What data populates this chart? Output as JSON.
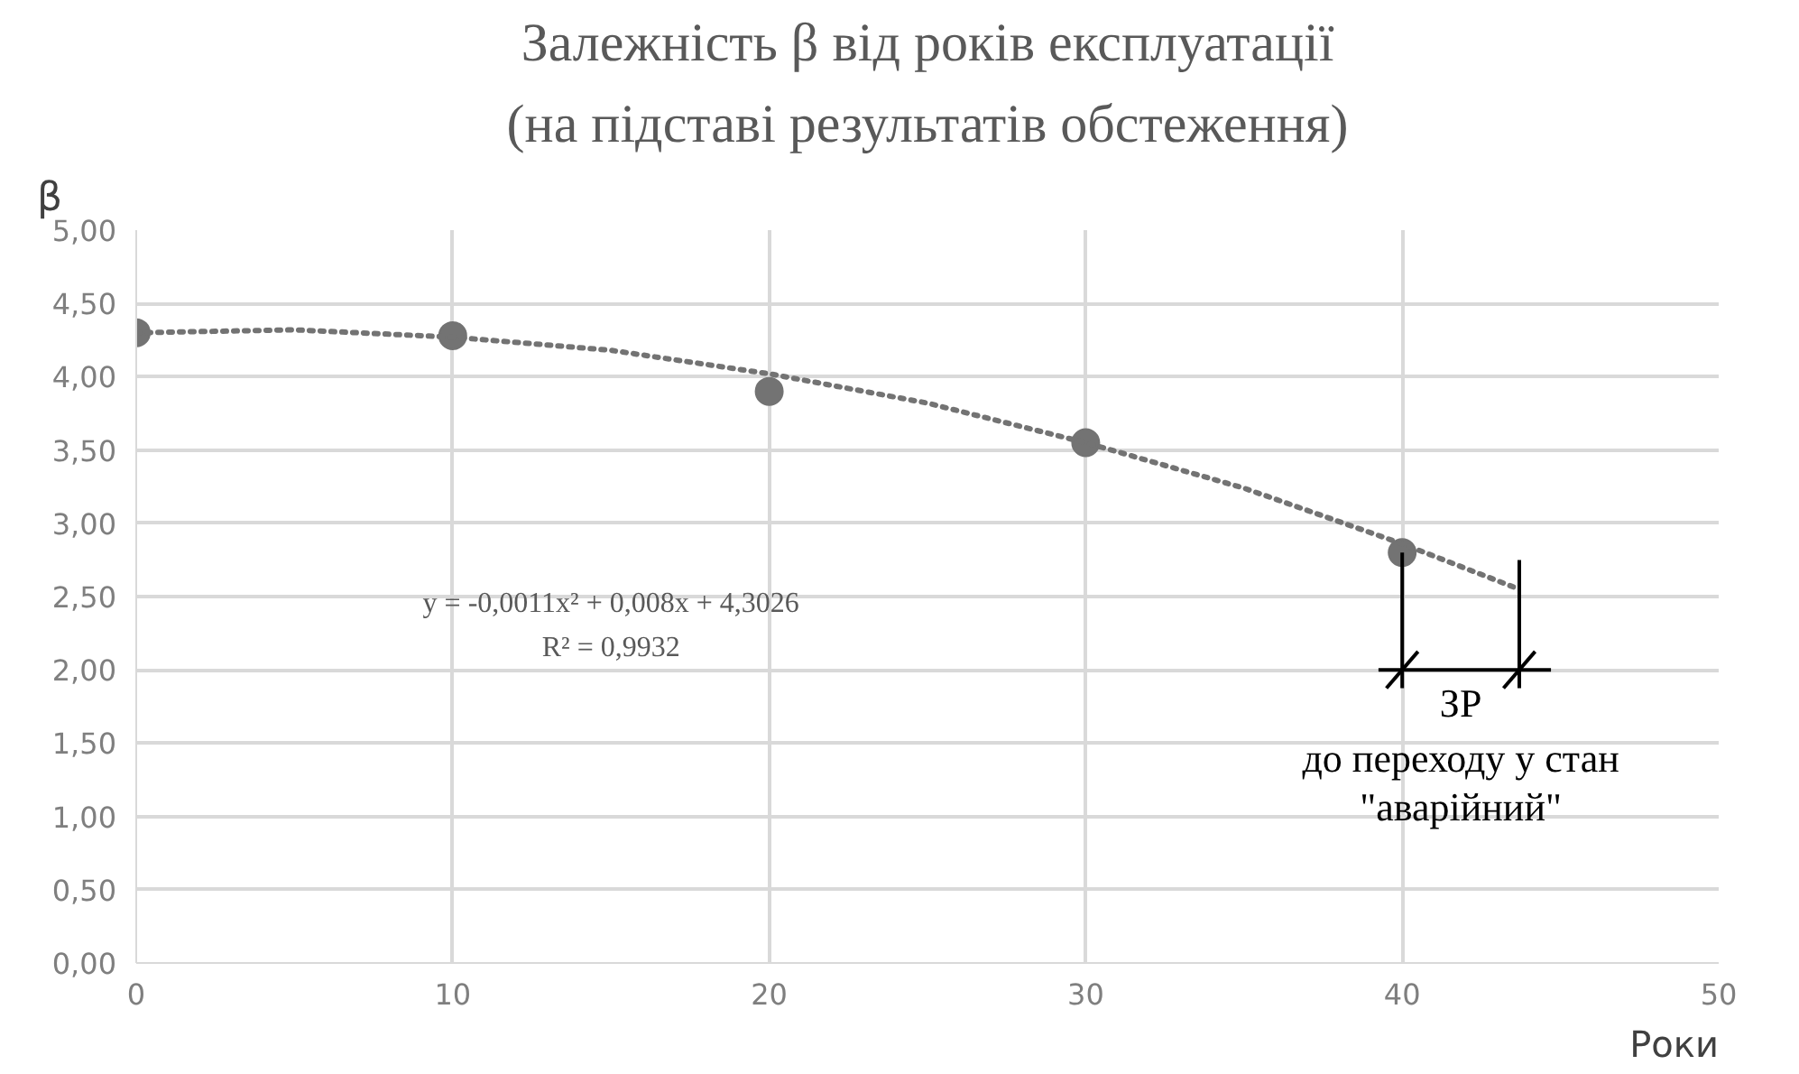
{
  "chart_data": {
    "type": "scatter",
    "title": "Залежність β від років експлуатації",
    "subtitle": "(на підставі результатів обстеження)",
    "xlabel": "Роки",
    "ylabel": "β",
    "series": [
      {
        "color": "#737373",
        "marker": "circle",
        "x": [
          0,
          10,
          20,
          30,
          40
        ],
        "values": [
          4.3,
          4.28,
          3.9,
          3.55,
          2.8
        ]
      },
      {
        "type": "line",
        "color": "#737373",
        "line_style": "dotted",
        "marker": "none",
        "x": [
          0,
          5,
          10,
          15,
          20,
          25,
          30,
          35,
          40,
          43.7
        ],
        "values": [
          4.3,
          4.32,
          4.27,
          4.18,
          4.02,
          3.82,
          3.55,
          3.24,
          2.86,
          2.55
        ]
      }
    ],
    "xlim": [
      0,
      50
    ],
    "xticks": [
      0,
      10,
      20,
      30,
      40,
      50
    ],
    "ylim": [
      0,
      5
    ],
    "yticks": [
      {
        "value": 0,
        "label": "0,00"
      },
      {
        "value": 0.5,
        "label": "0,50"
      },
      {
        "value": 1,
        "label": "1,00"
      },
      {
        "value": 1.5,
        "label": "1,50"
      },
      {
        "value": 2,
        "label": "2,00"
      },
      {
        "value": 2.5,
        "label": "2,50"
      },
      {
        "value": 3,
        "label": "3,00"
      },
      {
        "value": 3.5,
        "label": "3,50"
      },
      {
        "value": 4,
        "label": "4,00"
      },
      {
        "value": 4.5,
        "label": "4,50"
      },
      {
        "value": 5,
        "label": "5,00"
      }
    ],
    "grid": true,
    "ref_lines": [
      {
        "axis": "x",
        "value": 40,
        "color": "#000000"
      },
      {
        "axis": "x",
        "value": 43.7,
        "color": "#000000"
      },
      {
        "axis": "y",
        "value": 2,
        "label": "ЗР",
        "color": "#000000"
      }
    ],
    "annotations": [
      "y = -0,0011x² + 0,008x + 4,3026",
      "R² = 0,9932",
      "до переходу у стан",
      "\"аварійний\""
    ]
  }
}
